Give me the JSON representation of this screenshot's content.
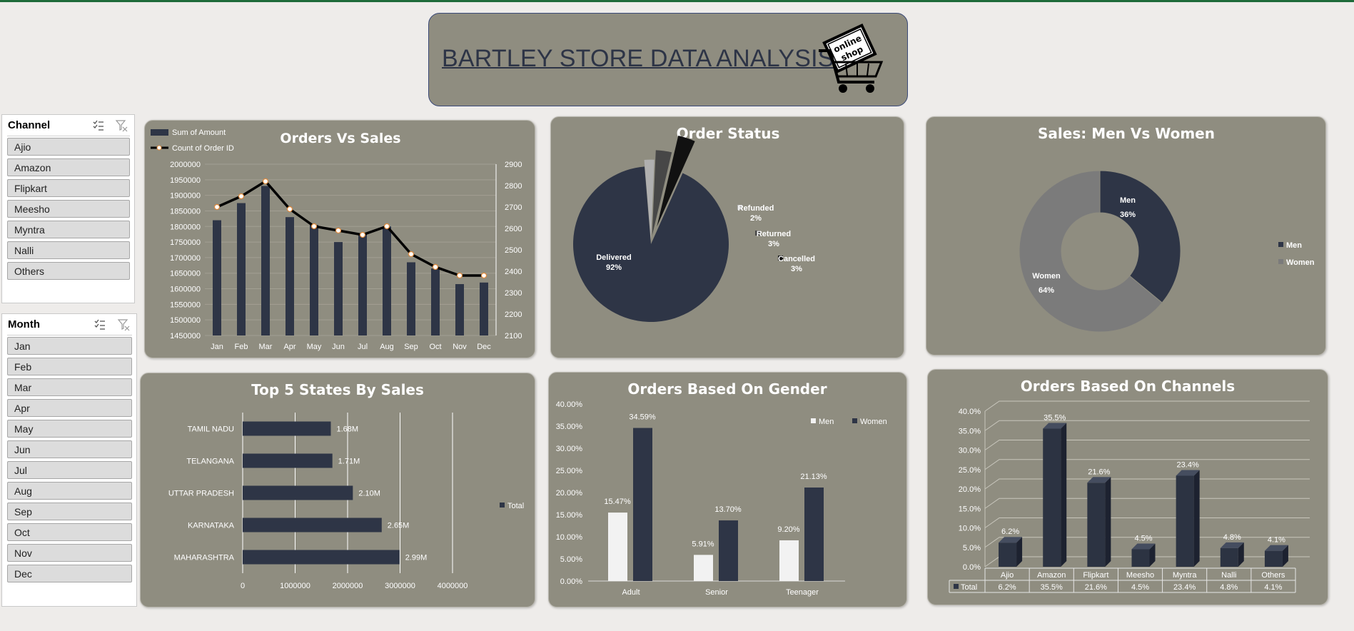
{
  "header": {
    "title": "BARTLEY STORE DATA ANALYSIS",
    "logo_text": [
      "online",
      "shop"
    ]
  },
  "colors": {
    "navy": "#2e3546",
    "panel": "#8f8d80",
    "grey": "#7b7b7b",
    "white": "#f2f2f2",
    "line": "#000000"
  },
  "slicers": {
    "channel": {
      "title": "Channel",
      "items": [
        "Ajio",
        "Amazon",
        "Flipkart",
        "Meesho",
        "Myntra",
        "Nalli",
        "Others"
      ]
    },
    "month": {
      "title": "Month",
      "items": [
        "Jan",
        "Feb",
        "Mar",
        "Apr",
        "May",
        "Jun",
        "Jul",
        "Aug",
        "Sep",
        "Oct",
        "Nov",
        "Dec"
      ]
    },
    "icons": [
      "multi-select-icon",
      "clear-filter-icon"
    ]
  },
  "chart_data": [
    {
      "id": "orders_vs_sales",
      "type": "bar",
      "title": "Orders Vs Sales",
      "categories": [
        "Jan",
        "Feb",
        "Mar",
        "Apr",
        "May",
        "Jun",
        "Jul",
        "Aug",
        "Sep",
        "Oct",
        "Nov",
        "Dec"
      ],
      "series": [
        {
          "name": "Sum of Amount",
          "type": "bar",
          "axis": "left",
          "values": [
            1820000,
            1875000,
            1930000,
            1830000,
            1805000,
            1750000,
            1775000,
            1800000,
            1685000,
            1665000,
            1615000,
            1620000
          ]
        },
        {
          "name": "Count of Order ID",
          "type": "line",
          "axis": "right",
          "values": [
            2700,
            2750,
            2820,
            2690,
            2610,
            2590,
            2570,
            2610,
            2480,
            2420,
            2380,
            2380
          ]
        }
      ],
      "ylim": [
        1450000,
        2000000
      ],
      "yticks": [
        "2000000",
        "1950000",
        "1900000",
        "1850000",
        "1800000",
        "1750000",
        "1700000",
        "1650000",
        "1600000",
        "1550000",
        "1500000",
        "1450000"
      ],
      "y2lim": [
        2100,
        2900
      ],
      "y2ticks": [
        "2900",
        "2800",
        "2700",
        "2600",
        "2500",
        "2400",
        "2300",
        "2200",
        "2100"
      ],
      "legend": "top-left"
    },
    {
      "id": "order_status",
      "type": "pie",
      "title": "Order Status",
      "slices": [
        {
          "name": "Delivered",
          "value": 92,
          "label": "92%"
        },
        {
          "name": "Refunded",
          "value": 2,
          "label": "2%"
        },
        {
          "name": "Returned",
          "value": 3,
          "label": "3%"
        },
        {
          "name": "Cancelled",
          "value": 3,
          "label": "3%"
        }
      ]
    },
    {
      "id": "sales_men_women",
      "type": "pie",
      "title": "Sales: Men Vs Women",
      "slices": [
        {
          "name": "Men",
          "value": 36,
          "label": "36%"
        },
        {
          "name": "Women",
          "value": 64,
          "label": "64%"
        }
      ],
      "legend": "right"
    },
    {
      "id": "top5_states",
      "type": "bar",
      "orientation": "horizontal",
      "title": "Top 5 States By Sales",
      "categories": [
        "TAMIL NADU",
        "TELANGANA",
        "UTTAR PRADESH",
        "KARNATAKA",
        "MAHARASHTRA"
      ],
      "values": [
        1680000,
        1710000,
        2100000,
        2650000,
        2990000
      ],
      "data_labels": [
        "1.68M",
        "1.71M",
        "2.10M",
        "2.65M",
        "2.99M"
      ],
      "series": [
        {
          "name": "Total"
        }
      ],
      "xlim": [
        0,
        4000000
      ],
      "xticks": [
        "0",
        "1000000",
        "2000000",
        "3000000",
        "4000000"
      ],
      "legend": "right"
    },
    {
      "id": "orders_gender",
      "type": "bar",
      "title": "Orders Based On Gender",
      "categories": [
        "Adult",
        "Senior",
        "Teenager"
      ],
      "series": [
        {
          "name": "Men",
          "values": [
            15.47,
            5.91,
            9.2
          ],
          "labels": [
            "15.47%",
            "5.91%",
            "9.20%"
          ]
        },
        {
          "name": "Women",
          "values": [
            34.59,
            13.7,
            21.13
          ],
          "labels": [
            "34.59%",
            "13.70%",
            "21.13%"
          ]
        }
      ],
      "ylim": [
        0,
        40
      ],
      "yticks": [
        "40.00%",
        "35.00%",
        "30.00%",
        "25.00%",
        "20.00%",
        "15.00%",
        "10.00%",
        "5.00%",
        "0.00%"
      ],
      "legend": "top-right"
    },
    {
      "id": "orders_channels",
      "type": "bar",
      "title": "Orders Based On Channels",
      "categories": [
        "Ajio",
        "Amazon",
        "Flipkart",
        "Meesho",
        "Myntra",
        "Nalli",
        "Others"
      ],
      "values": [
        6.2,
        35.5,
        21.6,
        4.5,
        23.4,
        4.8,
        4.1
      ],
      "labels": [
        "6.2%",
        "35.5%",
        "21.6%",
        "4.5%",
        "23.4%",
        "4.8%",
        "4.1%"
      ],
      "series": [
        {
          "name": "Total"
        }
      ],
      "ylim": [
        0,
        40
      ],
      "yticks": [
        "40.0%",
        "35.0%",
        "30.0%",
        "25.0%",
        "20.0%",
        "15.0%",
        "10.0%",
        "5.0%",
        "0.0%"
      ]
    }
  ]
}
